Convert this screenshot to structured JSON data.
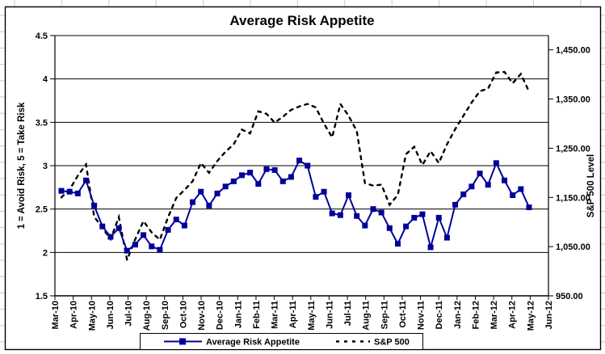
{
  "window": {
    "background": "excel-worksheet",
    "sheet_gridline_color": "#c9c9c9"
  },
  "chart_data": {
    "type": "line",
    "title": "Average Risk Appetite",
    "frequency": "bi-weekly points from Mar-10 to May-12",
    "grid": "horizontal gridlines on, vertical off",
    "plot_border_color": "#000000",
    "y_left": {
      "title": "1 = Avoid Risk, 5 = Take Risk",
      "min": 1.5,
      "max": 4.5,
      "step": 0.5,
      "tick_values": [
        4.5,
        4,
        3.5,
        3,
        2.5,
        2,
        1.5
      ],
      "tick_labels": [
        "4.5",
        "4",
        "3.5",
        "3",
        "2.5",
        "2",
        "1.5"
      ]
    },
    "y_right": {
      "title": "S&P 500 Level",
      "min": 950,
      "max": 1450,
      "step": 100,
      "plot_top_value": 1479,
      "tick_values": [
        1450,
        1350,
        1250,
        1150,
        1050,
        950
      ],
      "tick_labels": [
        "1,450.00",
        "1,350.00",
        "1,250.00",
        "1,150.00",
        "1,050.00",
        "950.00"
      ]
    },
    "x_tick_labels": [
      "Mar-10",
      "Apr-10",
      "May-10",
      "Jun-10",
      "Jul-10",
      "Aug-10",
      "Sep-10",
      "Oct-10",
      "Nov-10",
      "Dec-10",
      "Jan-11",
      "Feb-11",
      "Mar-11",
      "Apr-11",
      "May-11",
      "Jun-11",
      "Jul-11",
      "Aug-11",
      "Sep-11",
      "Oct-11",
      "Nov-11",
      "Dec-11",
      "Jan-12",
      "Feb-12",
      "Mar-12",
      "Apr-12",
      "May-12",
      "Jun-12"
    ],
    "series": [
      {
        "name": "Average Risk Appetite",
        "axis": "left",
        "color": "#000099",
        "marker": "square",
        "line_style": "solid",
        "values": [
          2.71,
          2.7,
          2.68,
          2.83,
          2.54,
          2.3,
          2.18,
          2.28,
          2.02,
          2.09,
          2.2,
          2.07,
          2.03,
          2.26,
          2.38,
          2.31,
          2.58,
          2.7,
          2.54,
          2.68,
          2.76,
          2.82,
          2.89,
          2.92,
          2.79,
          2.96,
          2.95,
          2.82,
          2.87,
          3.06,
          3.0,
          2.64,
          2.7,
          2.45,
          2.43,
          2.66,
          2.42,
          2.31,
          2.5,
          2.46,
          2.28,
          2.1,
          2.3,
          2.4,
          2.44,
          2.06,
          2.4,
          2.17,
          2.55,
          2.67,
          2.76,
          2.91,
          2.78,
          3.03,
          2.83,
          2.66,
          2.73,
          2.52
        ]
      },
      {
        "name": "S&P 500",
        "axis": "right",
        "color": "#000000",
        "marker": "none",
        "line_style": "dashed",
        "values": [
          1150,
          1166,
          1194,
          1217,
          1111,
          1088,
          1065,
          1110,
          1023,
          1065,
          1102,
          1079,
          1064,
          1110,
          1149,
          1165,
          1183,
          1220,
          1200,
          1224,
          1243,
          1258,
          1288,
          1280,
          1325,
          1320,
          1302,
          1314,
          1328,
          1335,
          1340,
          1333,
          1300,
          1272,
          1340,
          1316,
          1285,
          1179,
          1174,
          1176,
          1135,
          1155,
          1238,
          1253,
          1216,
          1244,
          1220,
          1258,
          1289,
          1316,
          1343,
          1366,
          1371,
          1404,
          1405,
          1382,
          1401,
          1365
        ]
      }
    ],
    "legend": {
      "position": "bottom",
      "entries": [
        "Average Risk Appetite",
        "S&P 500"
      ]
    }
  }
}
